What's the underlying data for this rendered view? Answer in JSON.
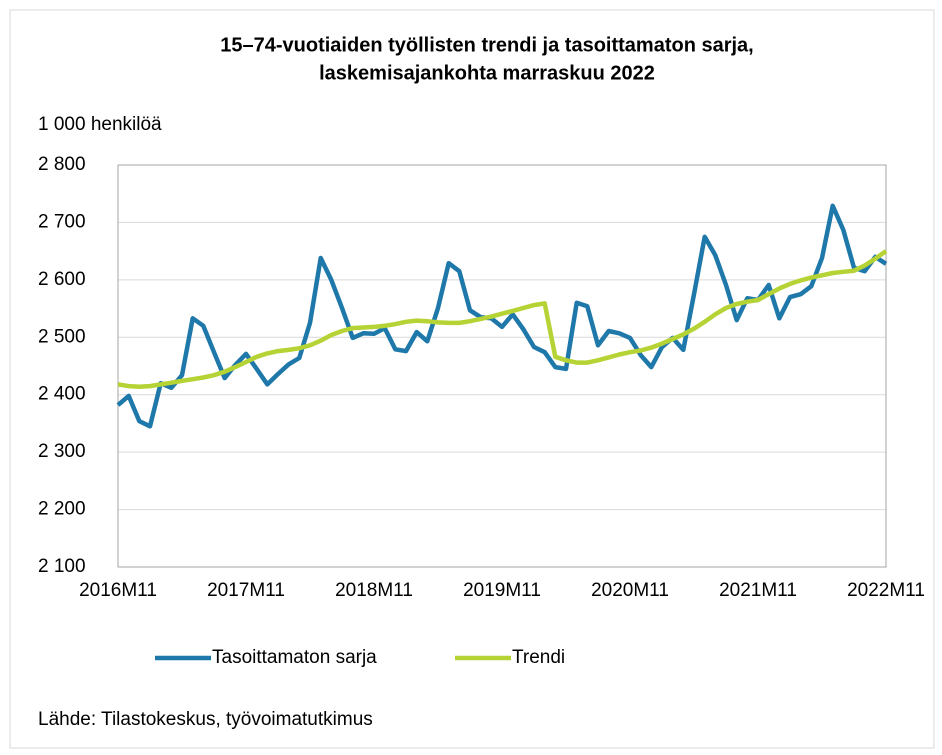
{
  "chart_data": {
    "type": "line",
    "title": "15–74-vuotiaiden työllisten trendi ja tasoittamaton sarja,",
    "subtitle": "laskemisajankohta marraskuu 2022",
    "y_axis_label": "1 000 henkilöä",
    "source": "Lähde: Tilastokeskus, työvoimatutkimus",
    "categories": [
      "2016M11",
      null,
      null,
      null,
      null,
      null,
      null,
      null,
      null,
      null,
      null,
      null,
      "2017M11",
      null,
      null,
      null,
      null,
      null,
      null,
      null,
      null,
      null,
      null,
      null,
      "2018M11",
      null,
      null,
      null,
      null,
      null,
      null,
      null,
      null,
      null,
      null,
      null,
      "2019M11",
      null,
      null,
      null,
      null,
      null,
      null,
      null,
      null,
      null,
      null,
      null,
      "2020M11",
      null,
      null,
      null,
      null,
      null,
      null,
      null,
      null,
      null,
      null,
      null,
      "2021M11",
      null,
      null,
      null,
      null,
      null,
      null,
      null,
      null,
      null,
      null,
      null,
      "2022M11"
    ],
    "series": [
      {
        "name": "Tasoittamaton sarja",
        "color": "#1f78aa",
        "values": [
          2382,
          2398,
          2354,
          2345,
          2420,
          2412,
          2434,
          2533,
          2520,
          2474,
          2429,
          2452,
          2471,
          2445,
          2418,
          2436,
          2453,
          2464,
          2525,
          2638,
          2600,
          2551,
          2499,
          2507,
          2506,
          2516,
          2479,
          2476,
          2509,
          2493,
          2551,
          2629,
          2615,
          2547,
          2535,
          2533,
          2518,
          2540,
          2514,
          2483,
          2474,
          2448,
          2445,
          2560,
          2554,
          2486,
          2511,
          2507,
          2499,
          2469,
          2448,
          2483,
          2499,
          2478,
          2575,
          2675,
          2643,
          2591,
          2530,
          2568,
          2565,
          2591,
          2533,
          2570,
          2575,
          2589,
          2638,
          2729,
          2687,
          2621,
          2615,
          2640,
          2628
        ]
      },
      {
        "name": "Trendi",
        "color": "#b5d334",
        "values": [
          2418,
          2415,
          2414,
          2415,
          2418,
          2421,
          2424,
          2427,
          2430,
          2434,
          2440,
          2448,
          2457,
          2466,
          2472,
          2476,
          2478,
          2481,
          2486,
          2494,
          2504,
          2511,
          2516,
          2517,
          2518,
          2520,
          2523,
          2527,
          2529,
          2528,
          2526,
          2525,
          2525,
          2528,
          2532,
          2536,
          2541,
          2546,
          2551,
          2556,
          2559,
          2466,
          2460,
          2456,
          2456,
          2460,
          2465,
          2470,
          2474,
          2477,
          2482,
          2489,
          2497,
          2505,
          2515,
          2527,
          2540,
          2551,
          2558,
          2562,
          2565,
          2575,
          2585,
          2593,
          2599,
          2604,
          2608,
          2612,
          2614,
          2616,
          2625,
          2637,
          2650
        ]
      }
    ],
    "ylim": [
      2100,
      2800
    ],
    "yticks": [
      {
        "value": 2100,
        "label": "2 100"
      },
      {
        "value": 2200,
        "label": "2 200"
      },
      {
        "value": 2300,
        "label": "2 300"
      },
      {
        "value": 2400,
        "label": "2 400"
      },
      {
        "value": 2500,
        "label": "2 500"
      },
      {
        "value": 2600,
        "label": "2 600"
      },
      {
        "value": 2700,
        "label": "2 700"
      },
      {
        "value": 2800,
        "label": "2 800"
      }
    ],
    "grid": true
  }
}
